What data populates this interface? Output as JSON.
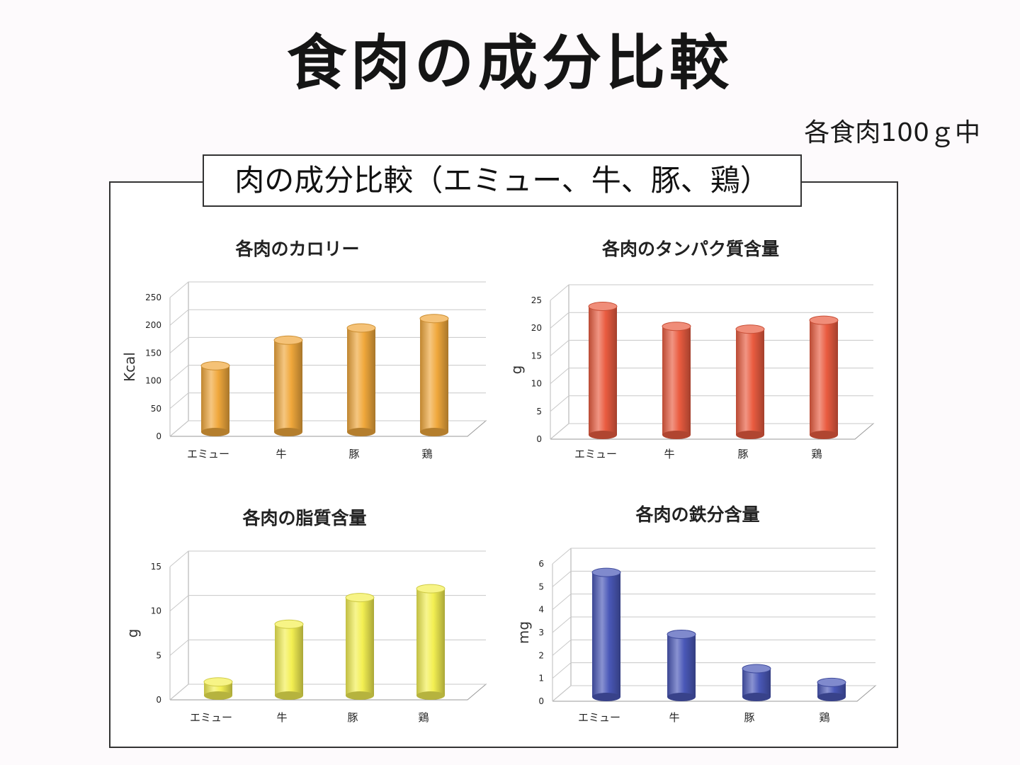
{
  "page": {
    "title": "食肉の成分比較",
    "note": "各食肉100ｇ中",
    "frame_title": "肉の成分比較（エミュー、牛、豚、鶏）"
  },
  "chart_data": [
    {
      "type": "bar",
      "title": "各肉のカロリー",
      "ylabel": "Kcal",
      "categories": [
        "エミュー",
        "牛",
        "豚",
        "鶏"
      ],
      "values": [
        122,
        168,
        190,
        207
      ],
      "ylim": [
        0,
        250
      ],
      "yticks": [
        0,
        50,
        100,
        150,
        200,
        250
      ],
      "color": "#f0a83c",
      "grid": true
    },
    {
      "type": "bar",
      "title": "各肉のタンパク質含量",
      "ylabel": "g",
      "categories": [
        "エミュー",
        "牛",
        "豚",
        "鶏"
      ],
      "values": [
        23.4,
        19.8,
        19.3,
        20.9
      ],
      "ylim": [
        0,
        25
      ],
      "yticks": [
        0,
        5,
        10,
        15,
        20,
        25
      ],
      "color": "#ea5c40",
      "grid": true
    },
    {
      "type": "bar",
      "title": "各肉の脂質含量",
      "ylabel": "g",
      "categories": [
        "エミュー",
        "牛",
        "豚",
        "鶏"
      ],
      "values": [
        1.7,
        8.2,
        11.2,
        12.2
      ],
      "ylim": [
        0,
        15
      ],
      "yticks": [
        0,
        5,
        10,
        15
      ],
      "color": "#f3ef52",
      "grid": true
    },
    {
      "type": "bar",
      "title": "各肉の鉄分含量",
      "ylabel": "mg",
      "categories": [
        "エミュー",
        "牛",
        "豚",
        "鶏"
      ],
      "values": [
        5.5,
        2.8,
        1.3,
        0.7
      ],
      "ylim": [
        0,
        6
      ],
      "yticks": [
        0,
        1,
        2,
        3,
        4,
        5,
        6
      ],
      "color": "#4a58b8",
      "grid": true
    }
  ]
}
